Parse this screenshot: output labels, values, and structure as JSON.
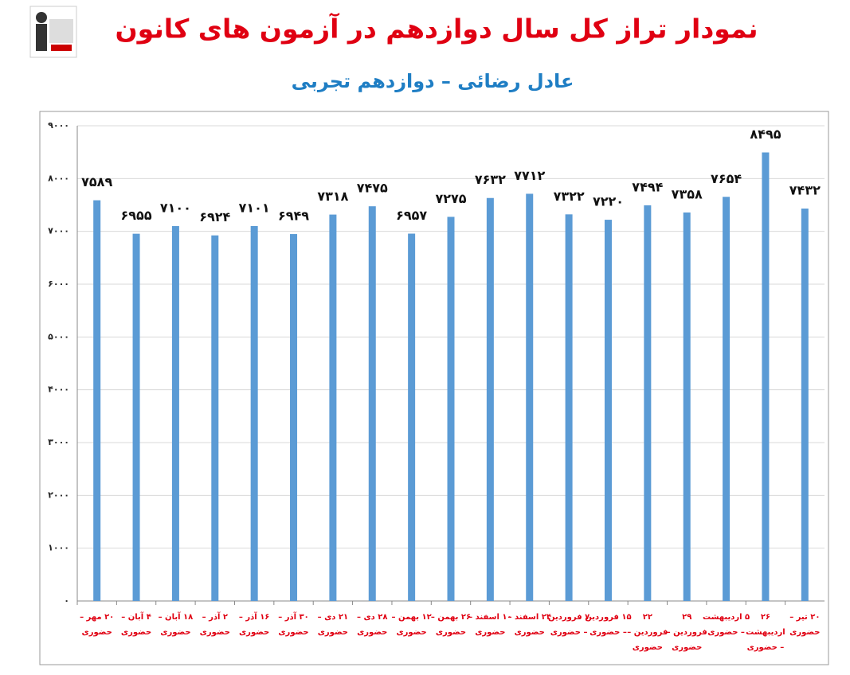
{
  "chart_data": {
    "type": "bar",
    "title": "نمودار تراز کل سال دوازدهم در آزمون های کانون",
    "subtitle": "عادل رضائی – دوازدهم تجربی",
    "categories": [
      [
        "۲۰ مهر –",
        "حضوری"
      ],
      [
        "۴ آبان –",
        "حضوری"
      ],
      [
        "۱۸ آبان –",
        "حضوری"
      ],
      [
        "۲ آذر –",
        "حضوری"
      ],
      [
        "۱۶ آذر –",
        "حضوری"
      ],
      [
        "۳۰ آذر –",
        "حضوری"
      ],
      [
        "۲۱ دی –",
        "حضوری"
      ],
      [
        "۲۸ دی –",
        "حضوری"
      ],
      [
        "۱۲ بهمن –",
        "حضوری"
      ],
      [
        "۲۶ بهمن –",
        "حضوری"
      ],
      [
        "۱۰ اسفند –",
        "حضوری"
      ],
      [
        "۲۴ اسفند –",
        "حضوری"
      ],
      [
        "۷ فروردین",
        "– حضوری"
      ],
      [
        "۱۵ فروردین",
        "– حضوری"
      ],
      [
        "۲۲",
        "فروردین –",
        "حضوری"
      ],
      [
        "۲۹",
        "فروردین –",
        "حضوری"
      ],
      [
        "۵ اردیبهشت",
        "– حضوری"
      ],
      [
        "۲۶",
        "اردیبهشت",
        "– حضوری"
      ],
      [
        "۲۰ تیر –",
        "حضوری"
      ]
    ],
    "values": [
      7589,
      6955,
      7100,
      6924,
      7101,
      6949,
      7318,
      7475,
      6957,
      7275,
      7632,
      7712,
      7322,
      7220,
      7494,
      7358,
      7654,
      8495,
      7432
    ],
    "value_labels": [
      "۷۵۸۹",
      "۶۹۵۵",
      "۷۱۰۰",
      "۶۹۲۴",
      "۷۱۰۱",
      "۶۹۴۹",
      "۷۳۱۸",
      "۷۴۷۵",
      "۶۹۵۷",
      "۷۲۷۵",
      "۷۶۳۲",
      "۷۷۱۲",
      "۷۳۲۲",
      "۷۲۲۰",
      "۷۴۹۴",
      "۷۳۵۸",
      "۷۶۵۴",
      "۸۴۹۵",
      "۷۴۳۲"
    ],
    "color": "#5b9bd5",
    "ylim": [
      0,
      9000
    ],
    "yticks": [
      {
        "value": 0,
        "label": "۰"
      },
      {
        "value": 1000,
        "label": "۱۰۰۰"
      },
      {
        "value": 2000,
        "label": "۲۰۰۰"
      },
      {
        "value": 3000,
        "label": "۳۰۰۰"
      },
      {
        "value": 4000,
        "label": "۴۰۰۰"
      },
      {
        "value": 5000,
        "label": "۵۰۰۰"
      },
      {
        "value": 6000,
        "label": "۶۰۰۰"
      },
      {
        "value": 7000,
        "label": "۷۰۰۰"
      },
      {
        "value": 8000,
        "label": "۸۰۰۰"
      },
      {
        "value": 9000,
        "label": "۹۰۰۰"
      }
    ],
    "grid": true
  }
}
